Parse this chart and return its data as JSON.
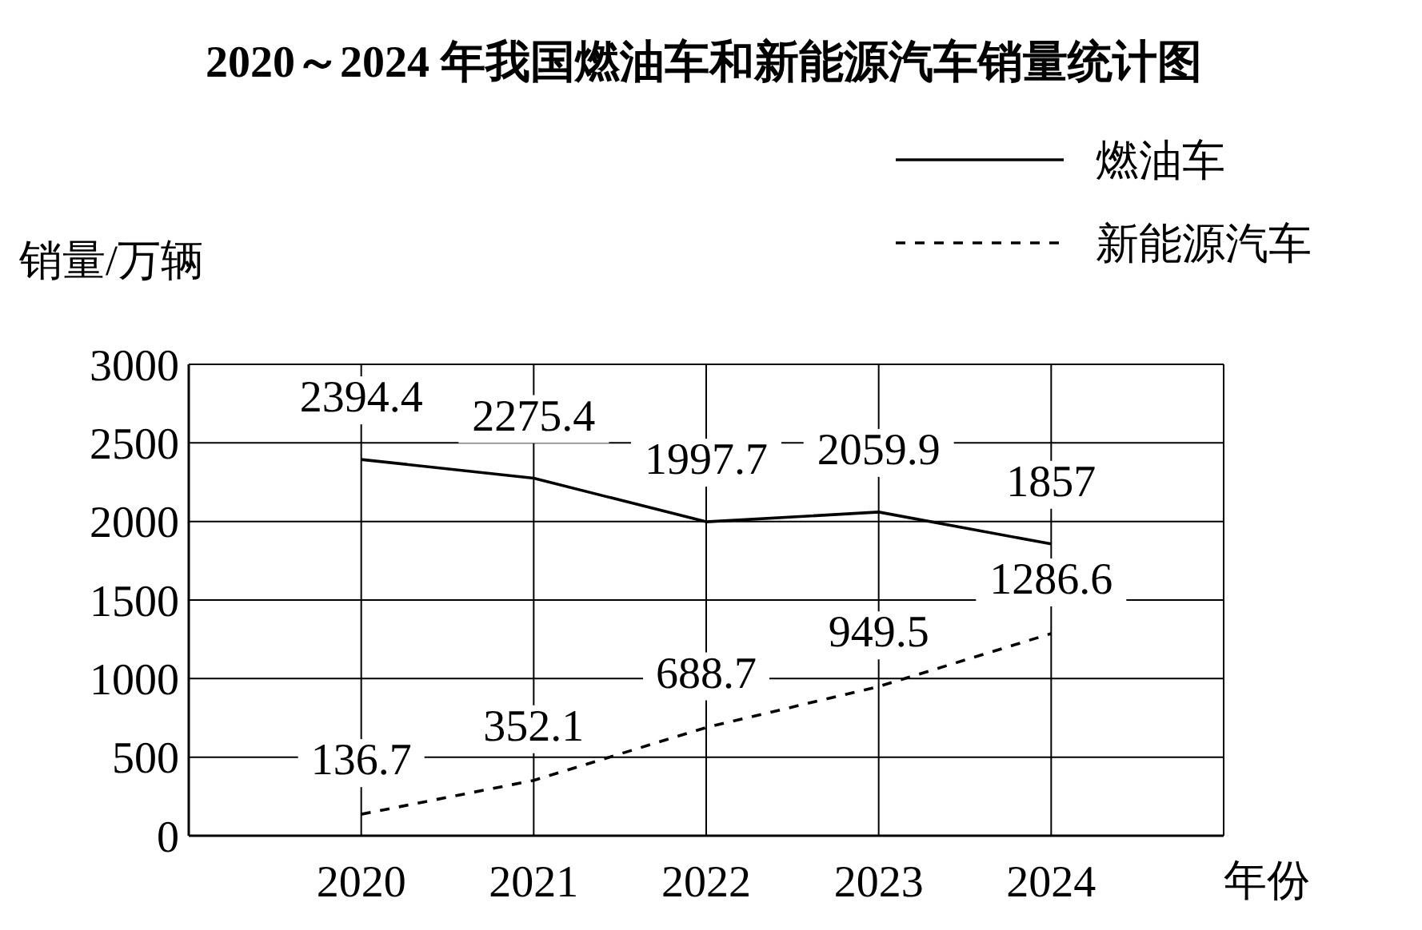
{
  "chart_data": {
    "type": "line",
    "title": "2020～2024 年我国燃油车和新能源汽车销量统计图",
    "xlabel": "年份",
    "ylabel": "销量/万辆",
    "categories": [
      "2020",
      "2021",
      "2022",
      "2023",
      "2024"
    ],
    "series": [
      {
        "name": "燃油车",
        "color": "#000000",
        "line_style": "solid",
        "values": [
          2394.4,
          2275.4,
          1997.7,
          2059.9,
          1857
        ]
      },
      {
        "name": "新能源汽车",
        "color": "#000000",
        "line_style": "dashed",
        "values": [
          136.7,
          352.1,
          688.7,
          949.5,
          1286.6
        ]
      }
    ],
    "ylim": [
      0,
      3000
    ],
    "yticks": [
      0,
      500,
      1000,
      1500,
      2000,
      2500,
      3000
    ],
    "grid": true,
    "legend": "top right",
    "data_labels": true,
    "marker": "none"
  }
}
